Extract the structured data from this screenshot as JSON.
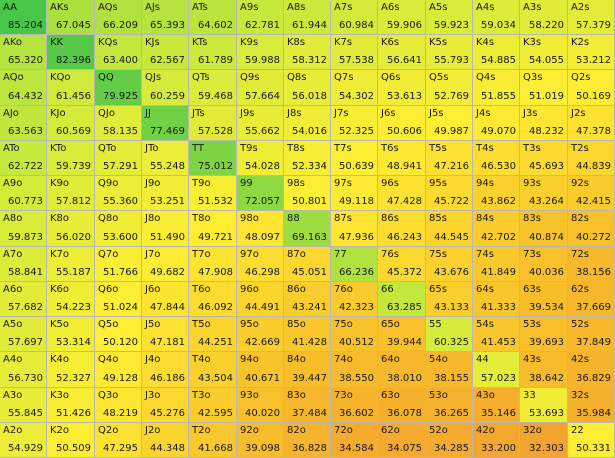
{
  "chart_data": {
    "type": "heatmap",
    "title": "",
    "hands": [
      [
        "AA",
        "AKs",
        "AQs",
        "AJs",
        "ATs",
        "A9s",
        "A8s",
        "A7s",
        "A6s",
        "A5s",
        "A4s",
        "A3s",
        "A2s"
      ],
      [
        "AKo",
        "KK",
        "KQs",
        "KJs",
        "KTs",
        "K9s",
        "K8s",
        "K7s",
        "K6s",
        "K5s",
        "K4s",
        "K3s",
        "K2s"
      ],
      [
        "AQo",
        "KQo",
        "QQ",
        "QJs",
        "QTs",
        "Q9s",
        "Q8s",
        "Q7s",
        "Q6s",
        "Q5s",
        "Q4s",
        "Q3s",
        "Q2s"
      ],
      [
        "AJo",
        "KJo",
        "QJo",
        "JJ",
        "JTs",
        "J9s",
        "J8s",
        "J7s",
        "J6s",
        "J5s",
        "J4s",
        "J3s",
        "J2s"
      ],
      [
        "ATo",
        "KTo",
        "QTo",
        "JTo",
        "TT",
        "T9s",
        "T8s",
        "T7s",
        "T6s",
        "T5s",
        "T4s",
        "T3s",
        "T2s"
      ],
      [
        "A9o",
        "K9o",
        "Q9o",
        "J9o",
        "T9o",
        "99",
        "98s",
        "97s",
        "96s",
        "95s",
        "94s",
        "93s",
        "92s"
      ],
      [
        "A8o",
        "K8o",
        "Q8o",
        "J8o",
        "T8o",
        "98o",
        "88",
        "87s",
        "86s",
        "85s",
        "84s",
        "83s",
        "82s"
      ],
      [
        "A7o",
        "K7o",
        "Q7o",
        "J7o",
        "T7o",
        "97o",
        "87o",
        "77",
        "76s",
        "75s",
        "74s",
        "73s",
        "72s"
      ],
      [
        "A6o",
        "K6o",
        "Q6o",
        "J6o",
        "T6o",
        "96o",
        "86o",
        "76o",
        "66",
        "65s",
        "64s",
        "63s",
        "62s"
      ],
      [
        "A5o",
        "K5o",
        "Q5o",
        "J5o",
        "T5o",
        "95o",
        "85o",
        "75o",
        "65o",
        "55",
        "54s",
        "53s",
        "52s"
      ],
      [
        "A4o",
        "K4o",
        "Q4o",
        "J4o",
        "T4o",
        "94o",
        "84o",
        "74o",
        "64o",
        "54o",
        "44",
        "43s",
        "42s"
      ],
      [
        "A3o",
        "K3o",
        "Q3o",
        "J3o",
        "T3o",
        "93o",
        "83o",
        "73o",
        "63o",
        "53o",
        "43o",
        "33",
        "32s"
      ],
      [
        "A2o",
        "K2o",
        "Q2o",
        "J2o",
        "T2o",
        "92o",
        "82o",
        "72o",
        "62o",
        "52o",
        "42o",
        "32o",
        "22"
      ]
    ],
    "values": [
      [
        "85.204",
        "67.045",
        "66.209",
        "65.393",
        "64.602",
        "62.781",
        "61.944",
        "60.984",
        "59.906",
        "59.923",
        "59.034",
        "58.220",
        "57.379"
      ],
      [
        "65.320",
        "82.396",
        "63.400",
        "62.567",
        "61.789",
        "59.988",
        "58.312",
        "57.538",
        "56.641",
        "55.793",
        "54.885",
        "54.055",
        "53.212"
      ],
      [
        "64.432",
        "61.456",
        "79.925",
        "60.259",
        "59.468",
        "57.664",
        "56.018",
        "54.302",
        "53.613",
        "52.769",
        "51.855",
        "51.019",
        "50.169"
      ],
      [
        "63.563",
        "60.569",
        "58.135",
        "77.469",
        "57.528",
        "55.662",
        "54.016",
        "52.325",
        "50.606",
        "49.987",
        "49.070",
        "48.232",
        "47.378"
      ],
      [
        "62.722",
        "59.739",
        "57.291",
        "55.248",
        "75.012",
        "54.028",
        "52.334",
        "50.639",
        "48.941",
        "47.216",
        "46.530",
        "45.693",
        "44.839"
      ],
      [
        "60.773",
        "57.812",
        "55.360",
        "53.251",
        "51.532",
        "72.057",
        "50.801",
        "49.118",
        "47.428",
        "45.722",
        "43.862",
        "43.264",
        "42.415"
      ],
      [
        "59.873",
        "56.020",
        "53.600",
        "51.490",
        "49.721",
        "48.097",
        "69.163",
        "47.936",
        "46.243",
        "44.545",
        "42.702",
        "40.874",
        "40.272"
      ],
      [
        "58.841",
        "55.187",
        "51.766",
        "49.682",
        "47.908",
        "46.298",
        "45.051",
        "66.236",
        "45.372",
        "43.676",
        "41.849",
        "40.036",
        "38.156"
      ],
      [
        "57.682",
        "54.223",
        "51.024",
        "47.844",
        "46.092",
        "44.491",
        "43.241",
        "42.323",
        "63.285",
        "43.133",
        "41.333",
        "39.534",
        "37.669"
      ],
      [
        "57.697",
        "53.314",
        "50.120",
        "47.181",
        "44.251",
        "42.669",
        "41.428",
        "40.512",
        "39.944",
        "60.325",
        "41.453",
        "39.693",
        "37.849"
      ],
      [
        "56.730",
        "52.327",
        "49.128",
        "46.186",
        "43.504",
        "40.671",
        "39.447",
        "38.550",
        "38.010",
        "38.155",
        "57.023",
        "38.642",
        "36.829"
      ],
      [
        "55.845",
        "51.426",
        "48.219",
        "45.276",
        "42.595",
        "40.020",
        "37.484",
        "36.602",
        "36.078",
        "36.265",
        "35.146",
        "53.693",
        "35.984"
      ],
      [
        "54.929",
        "50.509",
        "47.295",
        "44.348",
        "41.668",
        "39.098",
        "36.828",
        "34.584",
        "34.075",
        "34.285",
        "33.200",
        "32.303",
        "50.331"
      ]
    ],
    "color_scale": {
      "stops": [
        {
          "value": 32,
          "color": "#f3a22f"
        },
        {
          "value": 40,
          "color": "#f8c02a"
        },
        {
          "value": 50,
          "color": "#ffee33"
        },
        {
          "value": 60,
          "color": "#d9ec3a"
        },
        {
          "value": 70,
          "color": "#98dc40"
        },
        {
          "value": 85,
          "color": "#48c648"
        }
      ]
    }
  }
}
